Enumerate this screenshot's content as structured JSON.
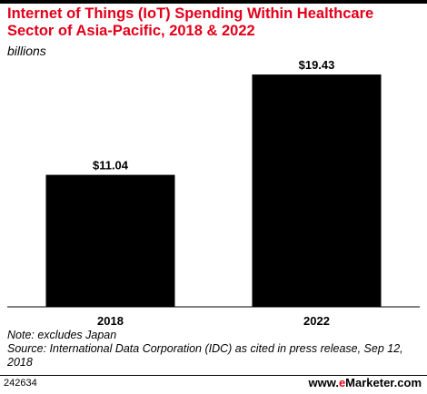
{
  "chart_data": {
    "type": "bar",
    "title": "Internet of Things (IoT) Spending Within Healthcare Sector of Asia-Pacific, 2018 & 2022",
    "subtitle": "billions",
    "categories": [
      "2018",
      "2022"
    ],
    "values": [
      11.04,
      19.43
    ],
    "data_labels": [
      "$11.04",
      "$19.43"
    ],
    "ylim": [
      0,
      20.5
    ],
    "grid": false,
    "bar_color": "#000000"
  },
  "notes": {
    "note": "Note: excludes Japan",
    "source": "Source: International Data Corporation (IDC) as cited in press release, Sep 12, 2018"
  },
  "footer": {
    "chart_id": "242634",
    "brand_prefix": "www.",
    "brand_e": "e",
    "brand_rest": "Marketer",
    "brand_suffix": ".com"
  },
  "colors": {
    "title": "#e3001b",
    "accent": "#e3001b"
  }
}
